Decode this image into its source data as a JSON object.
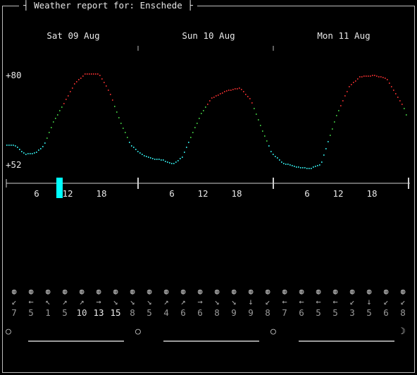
{
  "title": "Weather report for: Enschede",
  "colors": {
    "frame": "#bdbdbd",
    "cold": "#2fd4d4",
    "mild": "#3cb83c",
    "warm": "#d12a2a",
    "now": "#00ffff"
  },
  "days": [
    "Sat 09 Aug",
    "Sun 10 Aug",
    "Mon 11 Aug"
  ],
  "temp_axis": {
    "max_label": "+80",
    "min_label": "+52"
  },
  "hour_labels": [
    "6",
    "12",
    "18"
  ],
  "wind": [
    {
      "arrow": "↙",
      "speed": "7"
    },
    {
      "arrow": "←",
      "speed": "5"
    },
    {
      "arrow": "↖",
      "speed": "1"
    },
    {
      "arrow": "↗",
      "speed": "5"
    },
    {
      "arrow": "↗",
      "speed": "10"
    },
    {
      "arrow": "→",
      "speed": "13"
    },
    {
      "arrow": "↘",
      "speed": "15"
    },
    {
      "arrow": "↘",
      "speed": "8"
    },
    {
      "arrow": "↘",
      "speed": "5"
    },
    {
      "arrow": "↗",
      "speed": "4"
    },
    {
      "arrow": "↗",
      "speed": "6"
    },
    {
      "arrow": "→",
      "speed": "6"
    },
    {
      "arrow": "↘",
      "speed": "8"
    },
    {
      "arrow": "↘",
      "speed": "9"
    },
    {
      "arrow": "↓",
      "speed": "9"
    },
    {
      "arrow": "↙",
      "speed": "8"
    },
    {
      "arrow": "←",
      "speed": "7"
    },
    {
      "arrow": "←",
      "speed": "6"
    },
    {
      "arrow": "←",
      "speed": "5"
    },
    {
      "arrow": "←",
      "speed": "5"
    },
    {
      "arrow": "↙",
      "speed": "3"
    },
    {
      "arrow": "↓",
      "speed": "5"
    },
    {
      "arrow": "↙",
      "speed": "6"
    },
    {
      "arrow": "↙",
      "speed": "8"
    }
  ],
  "weather_icon_name": "cloudy-icon",
  "moon_phases": [
    "○",
    "○",
    "○",
    "☽"
  ]
}
